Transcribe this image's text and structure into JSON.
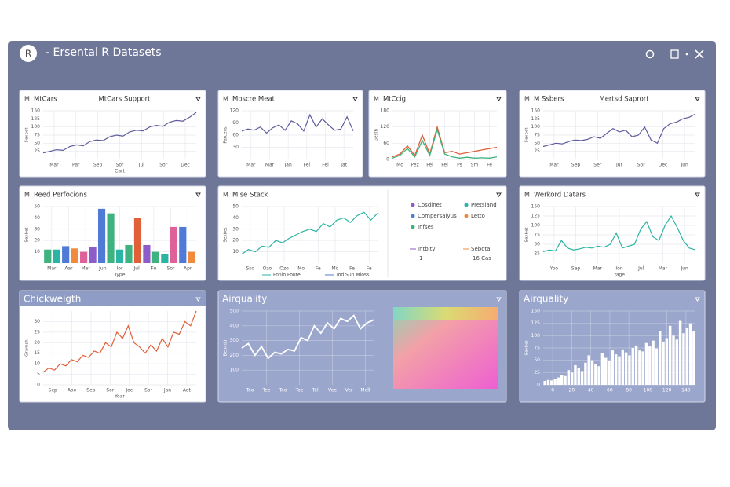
{
  "window": {
    "logo": "R",
    "title": "- Ersental R Datasets"
  },
  "panels": [
    {
      "badge": "M",
      "title": "MtCars",
      "subtitle": "MtCars Support",
      "theme": "light",
      "chart": {
        "type": "line",
        "color": "#5d5b9c",
        "values": [
          20,
          25,
          30,
          28,
          40,
          45,
          42,
          55,
          60,
          58,
          70,
          75,
          72,
          85,
          90,
          88,
          100,
          105,
          102,
          115,
          120,
          118,
          130,
          145
        ],
        "ylim": [
          0,
          150
        ],
        "yticks": [
          25,
          50,
          75,
          100,
          125,
          150
        ],
        "x_labels": [
          "Mar",
          "Par",
          "Sep",
          "Sor",
          "Jul",
          "Sor",
          "Dec"
        ],
        "y_label": "Sexbet",
        "x_label": "Cart"
      }
    },
    {
      "badge": "M",
      "title": "Moscre Meat",
      "theme": "light",
      "chart": {
        "type": "line",
        "color": "#5d5b9c",
        "values": [
          70,
          75,
          72,
          80,
          65,
          78,
          85,
          72,
          95,
          88,
          70,
          110,
          80,
          100,
          85,
          72,
          75,
          105,
          70
        ],
        "ylim": [
          0,
          120
        ],
        "yticks": [
          30,
          60,
          90,
          120
        ],
        "x_labels": [
          "Mar",
          "Mar",
          "Jan",
          "Fei",
          "Fel",
          "Jat"
        ],
        "y_label": "Parcens"
      }
    },
    {
      "badge": "M",
      "title": "MtCcig",
      "theme": "light",
      "chart": {
        "type": "multi-line",
        "series": [
          {
            "color": "#e0603a",
            "values": [
              10,
              20,
              50,
              15,
              90,
              20,
              120,
              25,
              30,
              20,
              25,
              30,
              35,
              40,
              45
            ]
          },
          {
            "color": "#3fb37f",
            "values": [
              5,
              15,
              40,
              10,
              70,
              15,
              110,
              20,
              10,
              5,
              8,
              5,
              6,
              5,
              10
            ]
          }
        ],
        "ylim": [
          0,
          180
        ],
        "yticks": [
          0,
          60,
          120,
          180
        ],
        "x_labels": [
          "Mo",
          "Pez",
          "Fei",
          "Fei",
          "Ps",
          "Sm",
          "Fe"
        ],
        "y_label": "Gesth"
      }
    },
    {
      "badge": "M",
      "title": "M Ssbers",
      "subtitle": "Mertsd Saprort",
      "theme": "light",
      "chart": {
        "type": "line",
        "color": "#5d5b9c",
        "values": [
          40,
          45,
          50,
          48,
          55,
          60,
          58,
          62,
          70,
          65,
          80,
          95,
          85,
          90,
          70,
          75,
          100,
          60,
          50,
          95,
          110,
          115,
          125,
          130,
          140
        ],
        "ylim": [
          0,
          150
        ],
        "yticks": [
          25,
          50,
          75,
          100,
          125,
          150
        ],
        "x_labels": [
          "Mar",
          "Sep",
          "Ser",
          "Jur",
          "Sor",
          "Dec",
          "Jun"
        ],
        "y_label": "Sexbet"
      }
    },
    {
      "badge": "M",
      "title": "Reed Perfocions",
      "theme": "light",
      "chart": {
        "type": "bar",
        "values": [
          12,
          12,
          15,
          13,
          10,
          14,
          48,
          44,
          12,
          16,
          40,
          16,
          10,
          8,
          32,
          32,
          10
        ],
        "colors": [
          "#3fb37f",
          "#2bb3a3",
          "#4f7bd6",
          "#f08a3c",
          "#e0609a",
          "#8e5cc9",
          "#4f7bd6",
          "#3fb37f",
          "#2bb3a3",
          "#3fb37f",
          "#e0603a",
          "#8e5cc9",
          "#3fb37f",
          "#2bb3a3",
          "#e0609a",
          "#4f7bd6",
          "#f08a3c"
        ],
        "ylim": [
          0,
          50
        ],
        "yticks": [
          10,
          20,
          30,
          40,
          50
        ],
        "x_labels": [
          "Mar",
          "Aar",
          "Mar",
          "Jun",
          "Ior",
          "Jul",
          "Fu",
          "Sor",
          "Apr"
        ],
        "y_label": "Sexbet",
        "x_label": "Type"
      }
    },
    {
      "badge": "M",
      "title": "Mlse Stack",
      "theme": "light",
      "chart": {
        "type": "line",
        "color": "#2bb3a3",
        "values": [
          8,
          12,
          10,
          15,
          14,
          20,
          18,
          22,
          25,
          28,
          30,
          28,
          35,
          32,
          38,
          40,
          36,
          42,
          45,
          38,
          44
        ],
        "ylim": [
          0,
          50
        ],
        "yticks": [
          10,
          20,
          30,
          40,
          50
        ],
        "x_labels": [
          "Sso",
          "Ozo",
          "Ozo",
          "Mo",
          "Fe",
          "Mo",
          "Fe",
          "Fe"
        ],
        "y_label": "Sexbet",
        "footer": [
          "Fonio Foute",
          "Tod Sun Mloss"
        ],
        "legend": [
          {
            "label": "Cosdinet",
            "color": "#8e5cc9"
          },
          {
            "label": "Pretsland",
            "color": "#2bb3a3"
          },
          {
            "label": "Compersalyus",
            "color": "#4f7bd6"
          },
          {
            "label": "Letto",
            "color": "#f08a3c"
          },
          {
            "label": "Infses",
            "color": "#3fb37f"
          }
        ],
        "stats": [
          {
            "label": "Intbity",
            "value": "1"
          },
          {
            "label": "Sebotal",
            "value": "16 Cas"
          }
        ]
      }
    },
    {
      "badge": "M",
      "title": "Werkord Datars",
      "theme": "light",
      "chart": {
        "type": "line",
        "color": "#2bb3a3",
        "values": [
          30,
          35,
          32,
          60,
          40,
          35,
          38,
          42,
          40,
          45,
          42,
          50,
          80,
          40,
          45,
          50,
          90,
          110,
          70,
          60,
          100,
          125,
          95,
          60,
          40,
          35
        ],
        "ylim": [
          0,
          150
        ],
        "yticks": [
          25,
          50,
          75,
          100,
          125,
          150
        ],
        "x_labels": [
          "Yoo",
          "Sep",
          "Mar",
          "Ion",
          "Jul",
          "Mar",
          "Jun"
        ],
        "y_label": "Sexbet",
        "x_label": "Yage"
      }
    },
    {
      "title": "Chickweigth",
      "theme": "header",
      "chart": {
        "type": "line",
        "color": "#e0603a",
        "values": [
          6,
          8,
          7,
          10,
          9,
          12,
          11,
          14,
          13,
          16,
          15,
          20,
          18,
          25,
          22,
          28,
          20,
          18,
          15,
          19,
          16,
          22,
          18,
          25,
          24,
          30,
          28,
          35
        ],
        "ylim": [
          0,
          35
        ],
        "yticks": [
          0,
          5,
          10,
          15,
          20,
          25,
          30
        ],
        "x_labels": [
          "Sep",
          "Aoo",
          "Sep",
          "Sor",
          "Joc",
          "Sor",
          "Jan",
          "Aot"
        ],
        "y_label": "Gramsh",
        "x_label": "Yoar"
      }
    },
    {
      "title": "Airquality",
      "theme": "blue",
      "chart": {
        "type": "line",
        "color": "#ffffff",
        "values": [
          250,
          280,
          200,
          260,
          180,
          220,
          210,
          240,
          230,
          320,
          300,
          400,
          350,
          420,
          380,
          450,
          430,
          470,
          380,
          420,
          440
        ],
        "ylim": [
          0,
          500
        ],
        "yticks": [
          100,
          200,
          300,
          400,
          500
        ],
        "x_labels": [
          "Too",
          "Tee",
          "Teo",
          "Toe",
          "Tell",
          "Vee",
          "Ver",
          "Mell"
        ],
        "y_label": "Beoadd"
      }
    },
    {
      "title": "Airquality",
      "theme": "blue",
      "chart": {
        "type": "bar",
        "color": "#ffffff",
        "values": [
          8,
          10,
          9,
          12,
          15,
          20,
          18,
          30,
          25,
          40,
          35,
          28,
          45,
          60,
          50,
          42,
          38,
          65,
          55,
          48,
          70,
          62,
          58,
          72,
          66,
          60,
          75,
          80,
          70,
          68,
          85,
          78,
          90,
          74,
          110,
          88,
          95,
          120,
          100,
          92,
          130,
          105,
          115,
          125,
          110
        ],
        "ylim": [
          0,
          150
        ],
        "yticks": [
          0,
          25,
          50,
          75,
          100,
          125,
          150
        ],
        "x_labels": [
          "0",
          "20",
          "40",
          "60",
          "80",
          "100",
          "120",
          "140"
        ],
        "y_label": "Sexbet"
      }
    }
  ]
}
